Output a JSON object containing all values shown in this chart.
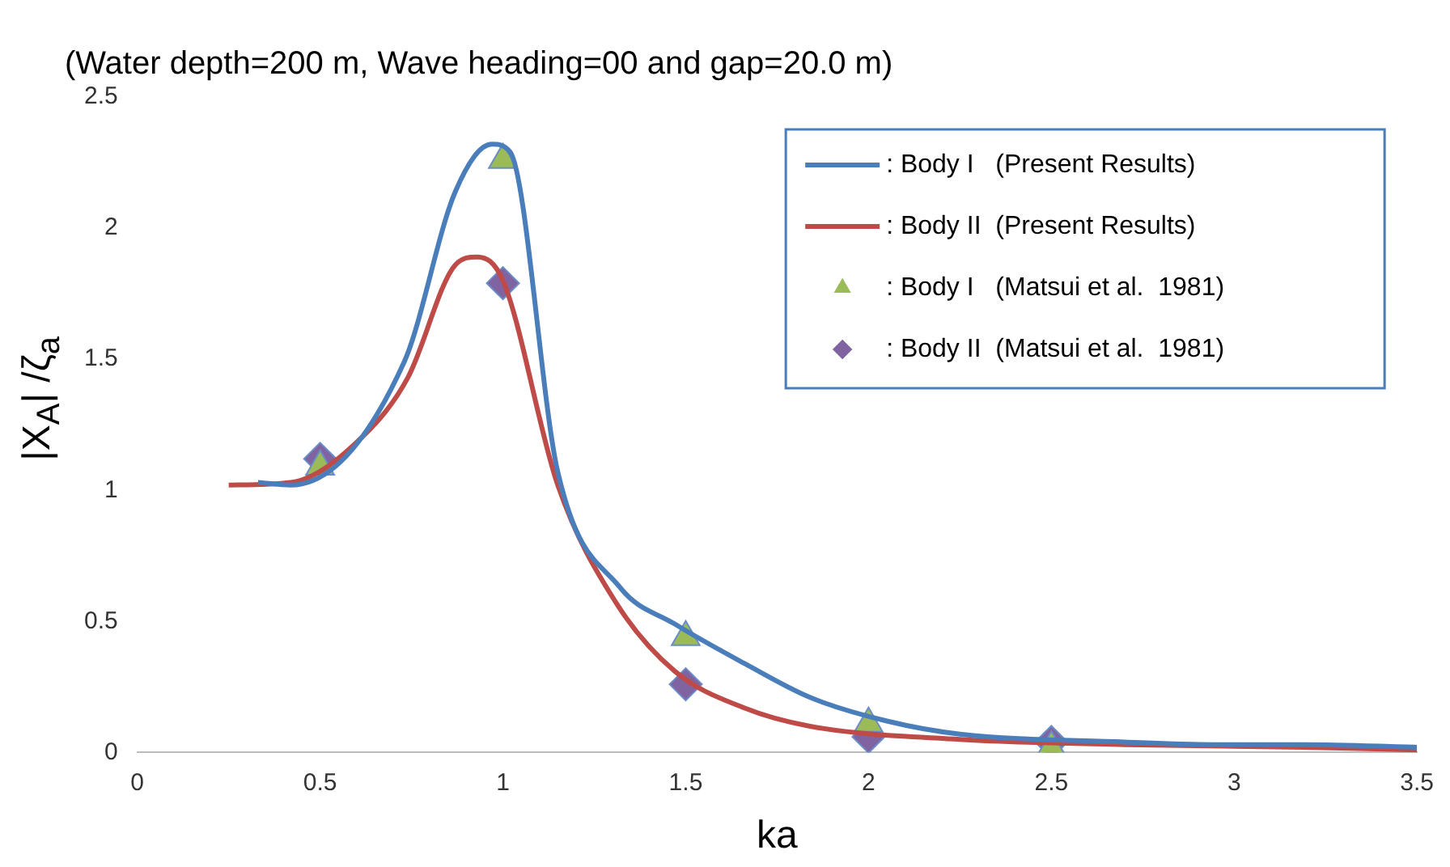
{
  "chart_data": {
    "type": "line",
    "title": "(Water depth=200 m, Wave heading=00 and gap=20.0 m)",
    "xlabel": "ka",
    "ylabel": "|X$_{A}$| /ζ$_{a}$",
    "xlim": [
      0,
      3.5
    ],
    "xticks": [
      0,
      0.5,
      1,
      1.5,
      2,
      2.5,
      3,
      3.5
    ],
    "ylim": [
      0,
      2.5
    ],
    "yticks": [
      0,
      0.5,
      1,
      1.5,
      2,
      2.5
    ],
    "grid": false,
    "legend": "top right",
    "line_style": "solid",
    "series": [
      {
        "name": ": Body I   (Present Results)",
        "marker": "none",
        "color": "#4a7ebb",
        "x": [
          0.33,
          0.42,
          0.73,
          0.87,
          0.97,
          1.02,
          1.15,
          1.32,
          1.47,
          1.66,
          1.84,
          2.05,
          2.25,
          2.7,
          2.94,
          3.19,
          3.5
        ],
        "values": [
          1.03,
          1.02,
          1.49,
          2.14,
          2.32,
          2.29,
          1.07,
          0.63,
          0.49,
          0.34,
          0.21,
          0.12,
          0.07,
          0.04,
          0.03,
          0.03,
          0.02
        ]
      },
      {
        "name": ": Body II  (Present Results)",
        "marker": "none",
        "color": "#be4b48",
        "x": [
          0.25,
          0.42,
          0.62,
          0.74,
          0.87,
          0.93,
          1.0,
          1.15,
          1.31,
          1.47,
          1.66,
          1.84,
          2.25,
          2.7,
          3.19,
          3.5
        ],
        "values": [
          1.02,
          1.03,
          1.21,
          1.43,
          1.86,
          1.89,
          1.8,
          1.02,
          0.57,
          0.31,
          0.17,
          0.1,
          0.05,
          0.03,
          0.02,
          0.01
        ]
      },
      {
        "name": ": Body I   (Matsui et al.  1981)",
        "type": "scatter",
        "marker": "triangle",
        "color": "#9bbb59",
        "x": [
          0.5,
          1.0,
          1.5,
          2.0,
          2.5
        ],
        "values": [
          1.09,
          2.26,
          0.44,
          0.11,
          0.02
        ]
      },
      {
        "name": ": Body II  (Matsui et al.  1981)",
        "type": "scatter",
        "marker": "diamond",
        "color": "#8064a2",
        "x": [
          0.5,
          1.0,
          1.5,
          2.0,
          2.5
        ],
        "values": [
          1.12,
          1.79,
          0.26,
          0.06,
          0.04
        ]
      }
    ]
  }
}
